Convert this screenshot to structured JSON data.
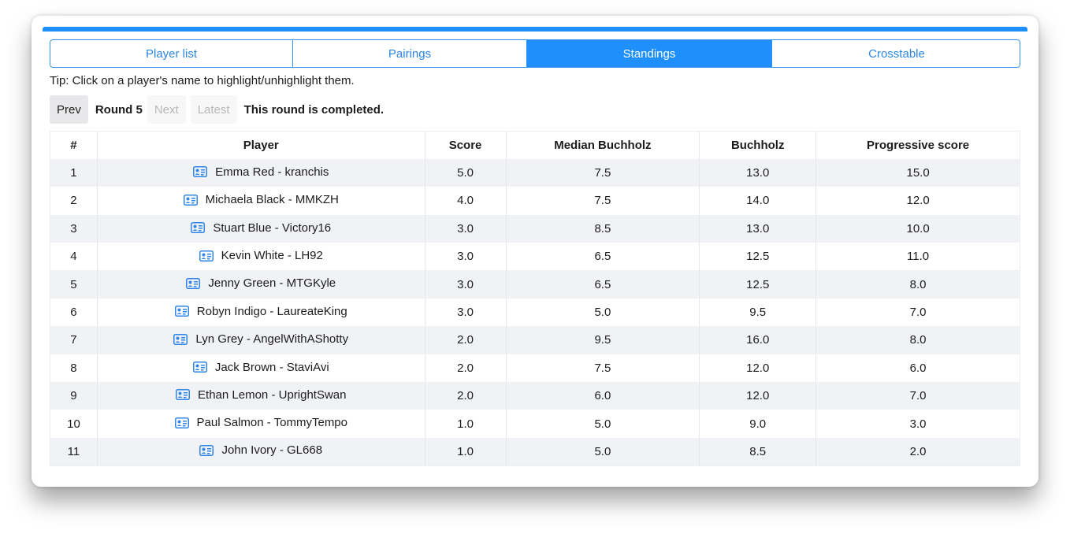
{
  "tabs": [
    {
      "label": "Player list",
      "active": false
    },
    {
      "label": "Pairings",
      "active": false
    },
    {
      "label": "Standings",
      "active": true
    },
    {
      "label": "Crosstable",
      "active": false
    }
  ],
  "tip": "Tip: Click on a player's name to highlight/unhighlight them.",
  "round_nav": {
    "prev_label": "Prev",
    "round_label": "Round 5",
    "next_label": "Next",
    "latest_label": "Latest",
    "status": "This round is completed."
  },
  "table": {
    "headers": [
      "#",
      "Player",
      "Score",
      "Median Buchholz",
      "Buchholz",
      "Progressive score"
    ],
    "player_icon": "id-card-icon",
    "rows": [
      {
        "rank": "1",
        "player": "Emma Red - kranchis",
        "score": "5.0",
        "median_buchholz": "7.5",
        "buchholz": "13.0",
        "progressive": "15.0"
      },
      {
        "rank": "2",
        "player": "Michaela Black - MMKZH",
        "score": "4.0",
        "median_buchholz": "7.5",
        "buchholz": "14.0",
        "progressive": "12.0"
      },
      {
        "rank": "3",
        "player": "Stuart Blue - Victory16",
        "score": "3.0",
        "median_buchholz": "8.5",
        "buchholz": "13.0",
        "progressive": "10.0"
      },
      {
        "rank": "4",
        "player": "Kevin White - LH92",
        "score": "3.0",
        "median_buchholz": "6.5",
        "buchholz": "12.5",
        "progressive": "11.0"
      },
      {
        "rank": "5",
        "player": "Jenny Green - MTGKyle",
        "score": "3.0",
        "median_buchholz": "6.5",
        "buchholz": "12.5",
        "progressive": "8.0"
      },
      {
        "rank": "6",
        "player": "Robyn Indigo - LaureateKing",
        "score": "3.0",
        "median_buchholz": "5.0",
        "buchholz": "9.5",
        "progressive": "7.0"
      },
      {
        "rank": "7",
        "player": "Lyn Grey - AngelWithAShotty",
        "score": "2.0",
        "median_buchholz": "9.5",
        "buchholz": "16.0",
        "progressive": "8.0"
      },
      {
        "rank": "8",
        "player": "Jack Brown - StaviAvi",
        "score": "2.0",
        "median_buchholz": "7.5",
        "buchholz": "12.0",
        "progressive": "6.0"
      },
      {
        "rank": "9",
        "player": "Ethan Lemon - UprightSwan",
        "score": "2.0",
        "median_buchholz": "6.0",
        "buchholz": "12.0",
        "progressive": "7.0"
      },
      {
        "rank": "10",
        "player": "Paul Salmon - TommyTempo",
        "score": "1.0",
        "median_buchholz": "5.0",
        "buchholz": "9.0",
        "progressive": "3.0"
      },
      {
        "rank": "11",
        "player": "John Ivory - GL668",
        "score": "1.0",
        "median_buchholz": "5.0",
        "buchholz": "8.5",
        "progressive": "2.0"
      }
    ]
  },
  "colors": {
    "accent": "#1e8ffb",
    "tab_text": "#2b86e5",
    "row_stripe": "#f1f2f6",
    "icon": "#2f86e8"
  }
}
